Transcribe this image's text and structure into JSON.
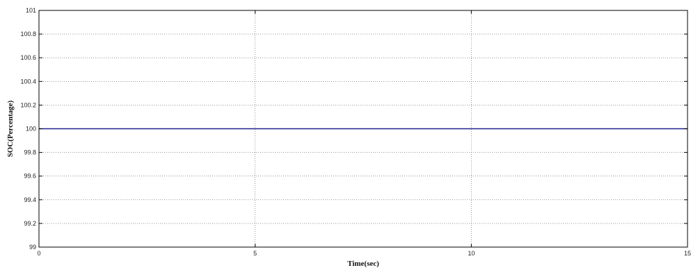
{
  "chart_data": {
    "type": "line",
    "title": "",
    "xlabel": "Time(sec)",
    "ylabel": "SOC(Percentage)",
    "xlim": [
      0,
      15
    ],
    "ylim": [
      99,
      101
    ],
    "xticks": [
      0,
      5,
      10,
      15
    ],
    "yticks": [
      99,
      99.2,
      99.4,
      99.6,
      99.8,
      100,
      100.2,
      100.4,
      100.6,
      100.8,
      101
    ],
    "xtick_labels": [
      "0",
      "5",
      "10",
      "15"
    ],
    "ytick_labels": [
      "99",
      "99.2",
      "99.4",
      "99.6",
      "99.8",
      "100",
      "100.2",
      "100.4",
      "100.6",
      "100.8",
      "101"
    ],
    "grid": true,
    "series": [
      {
        "x": [
          0,
          15
        ],
        "y": [
          100,
          100
        ],
        "color": "#1f1f8f"
      }
    ]
  }
}
